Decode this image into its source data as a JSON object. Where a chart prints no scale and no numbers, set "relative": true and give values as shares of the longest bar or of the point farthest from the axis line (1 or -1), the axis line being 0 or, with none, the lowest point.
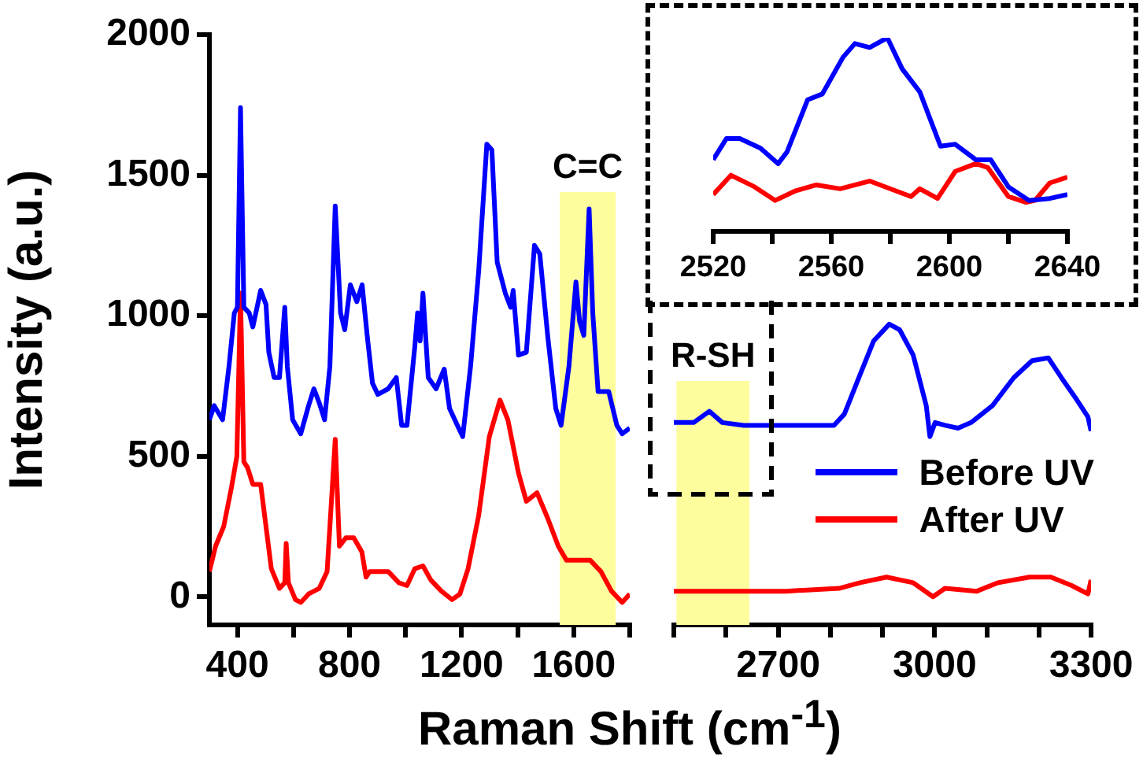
{
  "chart_data": [
    {
      "type": "line",
      "ylabel": "Intensity (a.u.)",
      "xlabel": "Raman Shift (cm$^{-1}$)",
      "xlim": [
        300,
        1800
      ],
      "ylim": [
        -100,
        2000
      ],
      "xticks": [
        400,
        {
          "value": 600,
          "label": null
        },
        800,
        {
          "value": 1000,
          "label": null
        },
        1200,
        {
          "value": 1400,
          "label": null
        },
        1600,
        {
          "value": 1800,
          "label": null
        }
      ],
      "yticks": [
        0,
        500,
        1000,
        1500,
        2000
      ],
      "grid": false,
      "marker": "none",
      "bands": [
        {
          "axis": "x",
          "from": 1550,
          "to": 1750,
          "label": "C=C",
          "color": "#fdfd9e"
        }
      ],
      "series": [
        {
          "color": "#0000ff",
          "x": [
            300,
            317,
            347,
            370,
            389,
            400,
            411,
            423,
            442,
            455,
            483,
            502,
            512,
            531,
            550,
            569,
            578,
            597,
            626,
            654,
            673,
            692,
            711,
            730,
            749,
            768,
            783,
            803,
            826,
            845,
            863,
            882,
            901,
            938,
            967,
            986,
            1005,
            1033,
            1043,
            1052,
            1062,
            1081,
            1109,
            1138,
            1157,
            1185,
            1204,
            1232,
            1261,
            1290,
            1308,
            1327,
            1356,
            1375,
            1384,
            1403,
            1431,
            1460,
            1479,
            1507,
            1536,
            1555,
            1583,
            1608,
            1621,
            1636,
            1655,
            1668,
            1687,
            1725,
            1754,
            1773,
            1800
          ],
          "values": [
            630,
            680,
            630,
            820,
            1010,
            1030,
            1740,
            1030,
            1010,
            960,
            1090,
            1040,
            870,
            780,
            780,
            1030,
            820,
            630,
            580,
            680,
            740,
            690,
            630,
            820,
            1390,
            1010,
            950,
            1110,
            1050,
            1110,
            930,
            760,
            720,
            740,
            780,
            610,
            610,
            890,
            1010,
            910,
            1080,
            780,
            740,
            810,
            670,
            610,
            570,
            820,
            1160,
            1610,
            1590,
            1190,
            1080,
            1030,
            1090,
            860,
            870,
            1250,
            1220,
            930,
            670,
            610,
            820,
            1120,
            980,
            930,
            1380,
            1010,
            730,
            730,
            610,
            580,
            600
          ]
        },
        {
          "color": "#ff0000",
          "x": [
            300,
            322,
            351,
            379,
            398,
            411,
            423,
            436,
            455,
            483,
            502,
            521,
            550,
            569,
            574,
            582,
            607,
            626,
            654,
            692,
            720,
            730,
            749,
            764,
            787,
            815,
            844,
            859,
            872,
            938,
            976,
            1005,
            1033,
            1062,
            1090,
            1128,
            1166,
            1194,
            1223,
            1261,
            1299,
            1337,
            1365,
            1403,
            1431,
            1469,
            1507,
            1545,
            1574,
            1659,
            1697,
            1735,
            1773,
            1800
          ],
          "values": [
            90,
            180,
            250,
            390,
            500,
            1080,
            480,
            460,
            400,
            400,
            250,
            100,
            30,
            50,
            190,
            50,
            -10,
            -20,
            10,
            30,
            90,
            250,
            560,
            180,
            210,
            210,
            160,
            70,
            90,
            90,
            50,
            40,
            100,
            110,
            60,
            20,
            -10,
            10,
            100,
            290,
            570,
            700,
            630,
            440,
            340,
            370,
            280,
            180,
            130,
            130,
            90,
            20,
            -20,
            10
          ]
        }
      ]
    },
    {
      "type": "line",
      "xlim": [
        2500,
        3300
      ],
      "ylim": [
        -100,
        2000
      ],
      "tick_labels": "x",
      "grid": false,
      "marker": "none",
      "legend": "bottom right",
      "xticks": [
        {
          "value": 2500,
          "label": null
        },
        {
          "value": 2600,
          "label": null
        },
        2700,
        {
          "value": 2800,
          "label": null
        },
        {
          "value": 2900,
          "label": null
        },
        3000,
        {
          "value": 3100,
          "label": null
        },
        {
          "value": 3200,
          "label": null
        },
        3300
      ],
      "bands": [
        {
          "axis": "x",
          "from": 2505,
          "to": 2645,
          "label": "R-SH",
          "color": "#fdfd9e"
        }
      ],
      "series": [
        {
          "name": "Before UV",
          "color": "#0000ff",
          "x": [
            2500,
            2538,
            2568,
            2593,
            2634,
            2715,
            2807,
            2827,
            2857,
            2883,
            2913,
            2933,
            2959,
            2984,
            2991,
            3001,
            3020,
            3045,
            3070,
            3111,
            3152,
            3187,
            3218,
            3243,
            3273,
            3294,
            3300
          ],
          "values": [
            620,
            620,
            660,
            620,
            610,
            610,
            610,
            650,
            790,
            910,
            970,
            950,
            860,
            680,
            570,
            620,
            610,
            600,
            620,
            680,
            780,
            840,
            850,
            780,
            700,
            640,
            590
          ]
        },
        {
          "name": "After UV",
          "color": "#ff0000",
          "x": [
            2500,
            2614,
            2715,
            2817,
            2857,
            2908,
            2959,
            2997,
            3020,
            3081,
            3121,
            3182,
            3223,
            3263,
            3294,
            3300
          ],
          "values": [
            20,
            20,
            20,
            30,
            50,
            70,
            50,
            0,
            30,
            20,
            50,
            70,
            70,
            40,
            10,
            60
          ]
        }
      ]
    },
    {
      "type": "line",
      "relative": true,
      "xlim": [
        2520,
        2640
      ],
      "tick_labels": "x",
      "grid": false,
      "marker": "none",
      "xticks": [
        2520,
        {
          "value": 2540,
          "label": null
        },
        2560,
        {
          "value": 2580,
          "label": null
        },
        2600,
        {
          "value": 2620,
          "label": null
        },
        2640
      ],
      "series": [
        {
          "color": "#0000ff",
          "x": [
            2520,
            2524.5,
            2529,
            2536,
            2542,
            2545,
            2552,
            2557,
            2564,
            2568,
            2573,
            2579,
            2584,
            2590,
            2597,
            2602,
            2609,
            2614,
            2620,
            2627,
            2634,
            2640
          ],
          "values": [
            0.37,
            0.48,
            0.48,
            0.43,
            0.35,
            0.41,
            0.68,
            0.71,
            0.9,
            0.97,
            0.95,
            1,
            0.84,
            0.72,
            0.44,
            0.45,
            0.37,
            0.37,
            0.23,
            0.16,
            0.17,
            0.19
          ]
        },
        {
          "color": "#ff0000",
          "x": [
            2520,
            2526,
            2534,
            2541,
            2548,
            2555,
            2563,
            2573,
            2587,
            2590,
            2596,
            2602,
            2609,
            2613,
            2620,
            2626,
            2629,
            2634,
            2640
          ],
          "values": [
            0.19,
            0.29,
            0.23,
            0.16,
            0.21,
            0.24,
            0.22,
            0.26,
            0.18,
            0.22,
            0.17,
            0.31,
            0.35,
            0.33,
            0.18,
            0.15,
            0.16,
            0.25,
            0.28
          ]
        }
      ]
    }
  ]
}
